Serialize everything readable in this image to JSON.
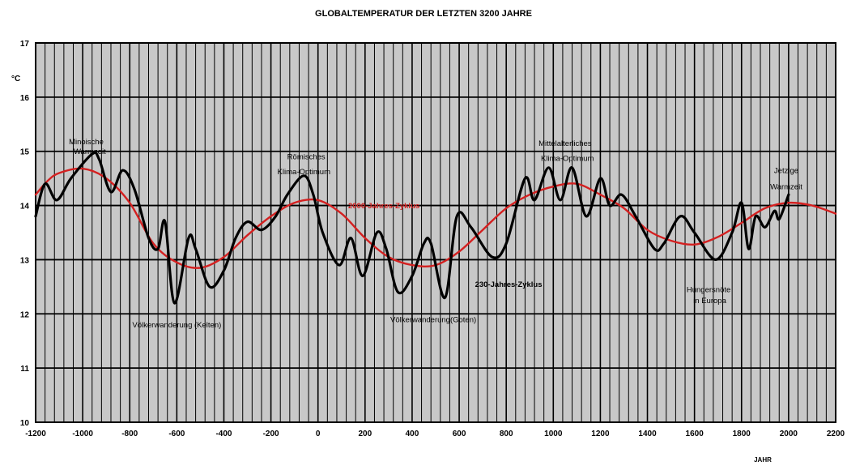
{
  "chart_data": {
    "type": "line",
    "title": "GLOBALTEMPERATUR DER LETZTEN 3200 JAHRE",
    "xlabel": "JAHR",
    "ylabel": "°C",
    "xlim": [
      -1200,
      2200
    ],
    "ylim": [
      10,
      17
    ],
    "grid": true,
    "x_ticks": [
      "-1200",
      "-1000",
      "-800",
      "-600",
      "-400",
      "-200",
      "0",
      "200",
      "400",
      "600",
      "800",
      "1000",
      "1200",
      "1400",
      "1600",
      "1800",
      "2000",
      "2200"
    ],
    "y_ticks": [
      "10",
      "11",
      "12",
      "13",
      "14",
      "15",
      "16",
      "17"
    ],
    "colors": {
      "background": "#c8c8c8",
      "temperature": "#000000",
      "cycle": "#d42020"
    },
    "series": [
      {
        "name": "",
        "color": "#000000",
        "points": [
          [
            -1200,
            13.8
          ],
          [
            -1160,
            14.4
          ],
          [
            -1110,
            14.1
          ],
          [
            -1050,
            14.5
          ],
          [
            -960,
            14.95
          ],
          [
            -930,
            14.85
          ],
          [
            -880,
            14.25
          ],
          [
            -830,
            14.65
          ],
          [
            -780,
            14.3
          ],
          [
            -720,
            13.4
          ],
          [
            -680,
            13.2
          ],
          [
            -650,
            13.7
          ],
          [
            -610,
            12.2
          ],
          [
            -550,
            13.4
          ],
          [
            -520,
            13.2
          ],
          [
            -460,
            12.5
          ],
          [
            -400,
            12.8
          ],
          [
            -350,
            13.4
          ],
          [
            -300,
            13.7
          ],
          [
            -240,
            13.55
          ],
          [
            -180,
            13.8
          ],
          [
            -130,
            14.2
          ],
          [
            -60,
            14.55
          ],
          [
            -20,
            14.2
          ],
          [
            20,
            13.5
          ],
          [
            90,
            12.9
          ],
          [
            140,
            13.4
          ],
          [
            190,
            12.7
          ],
          [
            250,
            13.5
          ],
          [
            290,
            13.2
          ],
          [
            340,
            12.4
          ],
          [
            400,
            12.7
          ],
          [
            450,
            13.3
          ],
          [
            480,
            13.3
          ],
          [
            540,
            12.3
          ],
          [
            590,
            13.8
          ],
          [
            650,
            13.6
          ],
          [
            740,
            13.05
          ],
          [
            800,
            13.3
          ],
          [
            880,
            14.5
          ],
          [
            920,
            14.1
          ],
          [
            980,
            14.7
          ],
          [
            1030,
            14.1
          ],
          [
            1080,
            14.7
          ],
          [
            1140,
            13.8
          ],
          [
            1200,
            14.5
          ],
          [
            1240,
            14.0
          ],
          [
            1290,
            14.2
          ],
          [
            1350,
            13.8
          ],
          [
            1430,
            13.2
          ],
          [
            1470,
            13.3
          ],
          [
            1540,
            13.8
          ],
          [
            1600,
            13.5
          ],
          [
            1690,
            13.0
          ],
          [
            1760,
            13.5
          ],
          [
            1800,
            14.05
          ],
          [
            1830,
            13.2
          ],
          [
            1860,
            13.8
          ],
          [
            1900,
            13.6
          ],
          [
            1940,
            13.9
          ],
          [
            1960,
            13.75
          ],
          [
            2000,
            14.2
          ]
        ]
      },
      {
        "name": "2000-Jahres-Zyklus",
        "color": "#d42020",
        "points": [
          [
            -1200,
            14.2
          ],
          [
            -1150,
            14.45
          ],
          [
            -1100,
            14.6
          ],
          [
            -1000,
            14.68
          ],
          [
            -900,
            14.5
          ],
          [
            -800,
            14.05
          ],
          [
            -700,
            13.3
          ],
          [
            -600,
            12.95
          ],
          [
            -500,
            12.85
          ],
          [
            -400,
            13.05
          ],
          [
            -300,
            13.45
          ],
          [
            -200,
            13.8
          ],
          [
            -100,
            14.05
          ],
          [
            0,
            14.1
          ],
          [
            100,
            13.85
          ],
          [
            200,
            13.4
          ],
          [
            300,
            13.05
          ],
          [
            400,
            12.9
          ],
          [
            500,
            12.9
          ],
          [
            600,
            13.15
          ],
          [
            700,
            13.55
          ],
          [
            800,
            13.95
          ],
          [
            900,
            14.2
          ],
          [
            1000,
            14.35
          ],
          [
            1100,
            14.4
          ],
          [
            1200,
            14.2
          ],
          [
            1300,
            13.95
          ],
          [
            1400,
            13.55
          ],
          [
            1500,
            13.35
          ],
          [
            1600,
            13.28
          ],
          [
            1700,
            13.42
          ],
          [
            1800,
            13.68
          ],
          [
            1900,
            13.95
          ],
          [
            2000,
            14.05
          ],
          [
            2100,
            14.0
          ],
          [
            2200,
            13.85
          ]
        ]
      }
    ],
    "annotations": [
      {
        "text": "Minoische",
        "x": -985,
        "y": 15.13,
        "style": "normal"
      },
      {
        "text": "Warmzeit",
        "x": -970,
        "y": 14.95,
        "style": "normal"
      },
      {
        "text": "Römisches",
        "x": -50,
        "y": 14.85,
        "style": "normal"
      },
      {
        "text": "Klima-Optimum",
        "x": -60,
        "y": 14.58,
        "style": "normal"
      },
      {
        "text": "2000-Jahres-Zyklus",
        "x": 280,
        "y": 13.95,
        "style": "red"
      },
      {
        "text": "Mittelalterliches",
        "x": 1050,
        "y": 15.1,
        "style": "normal"
      },
      {
        "text": "Klima-Optimum",
        "x": 1060,
        "y": 14.82,
        "style": "normal"
      },
      {
        "text": "Jetzige",
        "x": 1990,
        "y": 14.6,
        "style": "normal"
      },
      {
        "text": "Warmzeit",
        "x": 1990,
        "y": 14.3,
        "style": "normal"
      },
      {
        "text": "Völkerwanderung (Kelten)",
        "x": -600,
        "y": 11.75,
        "style": "normal"
      },
      {
        "text": "230-Jahres-Zyklus",
        "x": 810,
        "y": 12.5,
        "style": "bold"
      },
      {
        "text": "Völkerwanderung(Goten)",
        "x": 490,
        "y": 11.85,
        "style": "normal"
      },
      {
        "text": "Hungersnöte",
        "x": 1660,
        "y": 12.4,
        "style": "normal"
      },
      {
        "text": "in Europa",
        "x": 1665,
        "y": 12.2,
        "style": "normal"
      }
    ]
  }
}
